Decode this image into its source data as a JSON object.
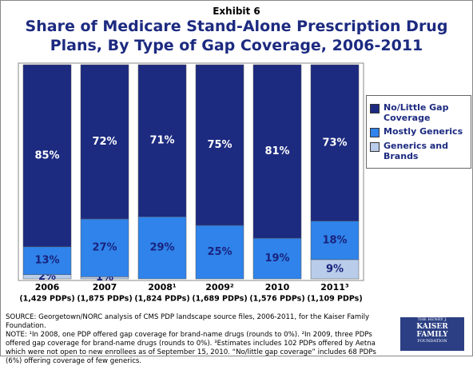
{
  "chart_data": {
    "type": "stacked-bar",
    "label": "Exhibit 6",
    "title": "Share of Medicare Stand-Alone Prescription Drug Plans, By Type of Gap Coverage, 2006-2011",
    "categories": [
      "2006",
      "2007",
      "2008¹",
      "2009²",
      "2010",
      "2011³"
    ],
    "category_counts": [
      "(1,429 PDPs)",
      "(1,875 PDPs)",
      "(1,824 PDPs)",
      "(1,689 PDPs)",
      "(1,576 PDPs)",
      "(1,109 PDPs)"
    ],
    "series": [
      {
        "name": "Generics and Brands",
        "color": "#b9cdea",
        "label_color": "#1a237e",
        "values": [
          2,
          1,
          0,
          0,
          0,
          9
        ],
        "value_labels": [
          "2%",
          "1%",
          null,
          null,
          null,
          "9%"
        ]
      },
      {
        "name": "Mostly Generics",
        "color": "#2f83ea",
        "label_color": "#1a237e",
        "values": [
          13,
          27,
          29,
          25,
          19,
          18
        ],
        "value_labels": [
          "13%",
          "27%",
          "29%",
          "25%",
          "19%",
          "18%"
        ]
      },
      {
        "name": "No/Little Gap Coverage",
        "color": "#1c2a80",
        "label_color": "#ffffff",
        "values": [
          85,
          72,
          71,
          75,
          81,
          73
        ],
        "value_labels": [
          "85%",
          "72%",
          "71%",
          "75%",
          "81%",
          "73%"
        ]
      }
    ],
    "ylim": [
      0,
      100
    ],
    "legend": "right",
    "source": "SOURCE: Georgetown/NORC analysis of CMS PDP landscape source files, 2006-2011, for the Kaiser Family Foundation.",
    "note": "NOTE: ¹In 2008, one PDP offered gap coverage for brand-name drugs (rounds to 0%). ²In 2009, three PDPs offered gap coverage for brand-name drugs (rounds to 0%). ³Estimates includes 102 PDPs offered by Aetna which were not open to new enrollees as of September 15, 2010. “No/little gap coverage” includes 68 PDPs (6%) offering coverage of few generics.",
    "logo": [
      "THE HENRY J.",
      "KAISER",
      "FAMILY",
      "FOUNDATION"
    ]
  }
}
